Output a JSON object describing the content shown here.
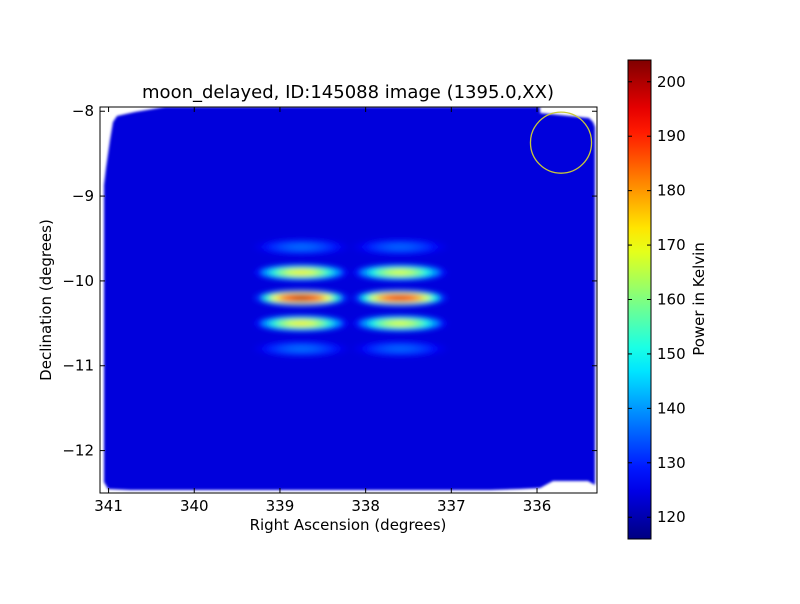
{
  "chart_data": {
    "type": "heatmap",
    "title": "moon_delayed, ID:145088 image (1395.0,XX)",
    "xlabel": "Right Ascension (degrees)",
    "ylabel": "Declination (degrees)",
    "xlim": [
      341.1,
      335.3
    ],
    "ylim": [
      -12.5,
      -7.95
    ],
    "x_ticks": [
      341,
      340,
      339,
      338,
      337,
      336
    ],
    "x_tick_labels": [
      "341",
      "340",
      "339",
      "338",
      "337",
      "336"
    ],
    "y_ticks": [
      -8,
      -9,
      -10,
      -11,
      -12
    ],
    "y_tick_labels": [
      "−8",
      "−9",
      "−10",
      "−11",
      "−12"
    ],
    "colorbar": {
      "label": "Power in Kelvin",
      "vmin": 116,
      "vmax": 204,
      "ticks": [
        120,
        130,
        140,
        150,
        160,
        170,
        180,
        190,
        200
      ],
      "tick_labels": [
        "120",
        "130",
        "140",
        "150",
        "160",
        "170",
        "180",
        "190",
        "200"
      ],
      "colormap": "jet"
    },
    "background_level": 124,
    "sources": [
      {
        "ra": 338.75,
        "dec": -10.2,
        "peak": 203,
        "fringe_spacing_deg": 0.3,
        "lobes": 5
      },
      {
        "ra": 337.6,
        "dec": -10.2,
        "peak": 198,
        "fringe_spacing_deg": 0.3,
        "lobes": 5
      }
    ],
    "beam_circle": {
      "ra": 335.72,
      "dec": -8.37,
      "radius_deg": 0.36,
      "color": "#c8c83a"
    }
  }
}
